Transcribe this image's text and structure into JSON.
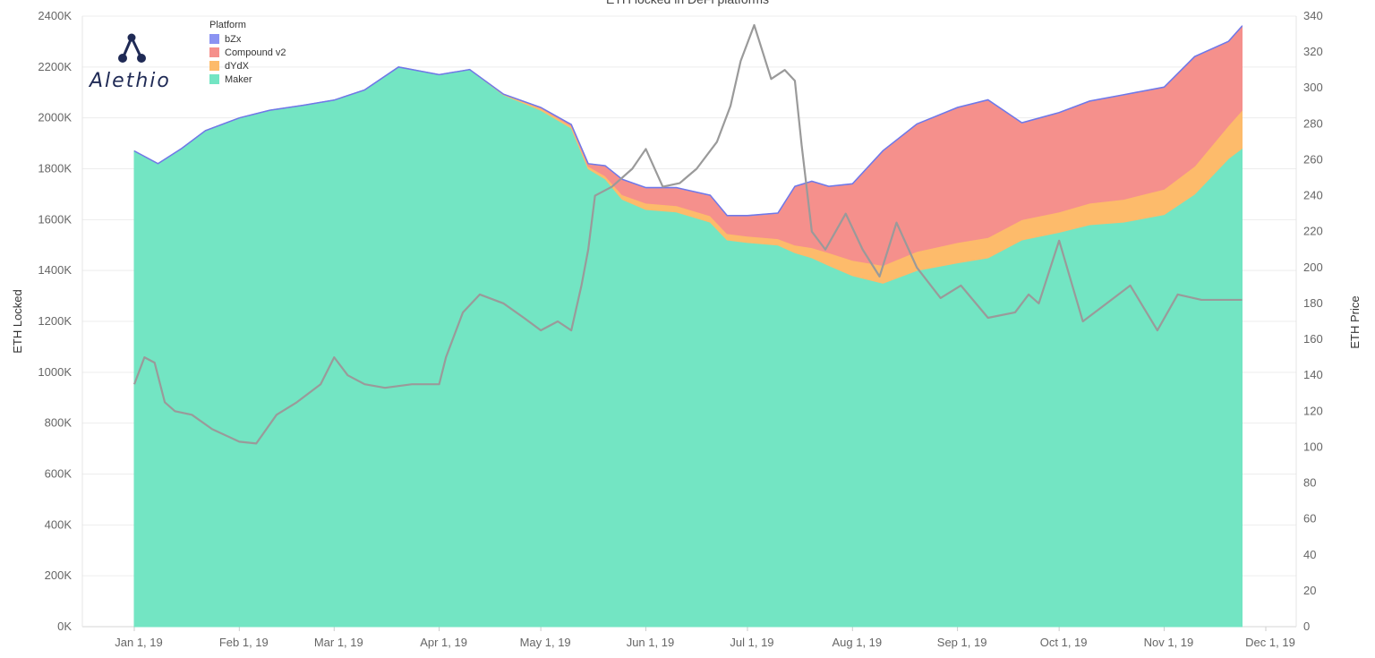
{
  "logo": {
    "wordmark": "Alethio"
  },
  "legend": {
    "title": "Platform",
    "items": [
      {
        "label": "bZx",
        "color": "#8b93f2"
      },
      {
        "label": "Compound v2",
        "color": "#f5908c"
      },
      {
        "label": "dYdX",
        "color": "#fdbb6b"
      },
      {
        "label": "Maker",
        "color": "#73e5c3"
      }
    ]
  },
  "chart_data": {
    "type": "area",
    "title": "ETH locked in DeFi platforms",
    "ylabel": "ETH Locked",
    "y2label": "ETH Price",
    "ylim": [
      0,
      2400000
    ],
    "y2lim": [
      0,
      340
    ],
    "yticks": [
      "0K",
      "200K",
      "400K",
      "600K",
      "800K",
      "1000K",
      "1200K",
      "1400K",
      "1600K",
      "1800K",
      "2000K",
      "2200K",
      "2400K"
    ],
    "y2ticks": [
      "0",
      "20",
      "40",
      "60",
      "80",
      "100",
      "120",
      "140",
      "160",
      "180",
      "200",
      "220",
      "240",
      "260",
      "280",
      "300",
      "320",
      "340"
    ],
    "xticks": [
      "Jan 1, 19",
      "Feb 1, 19",
      "Mar 1, 19",
      "Apr 1, 19",
      "May 1, 19",
      "Jun 1, 19",
      "Jul 1, 19",
      "Aug 1, 19",
      "Sep 1, 19",
      "Oct 1, 19",
      "Nov 1, 19",
      "Dec 1, 19"
    ],
    "x_dates": [
      "2019-01-01",
      "2019-01-08",
      "2019-01-15",
      "2019-01-22",
      "2019-02-01",
      "2019-02-10",
      "2019-02-20",
      "2019-03-01",
      "2019-03-10",
      "2019-03-20",
      "2019-04-01",
      "2019-04-10",
      "2019-04-20",
      "2019-05-01",
      "2019-05-10",
      "2019-05-15",
      "2019-05-20",
      "2019-05-25",
      "2019-06-01",
      "2019-06-10",
      "2019-06-20",
      "2019-06-25",
      "2019-07-01",
      "2019-07-10",
      "2019-07-15",
      "2019-07-20",
      "2019-07-25",
      "2019-08-01",
      "2019-08-10",
      "2019-08-20",
      "2019-09-01",
      "2019-09-10",
      "2019-09-20",
      "2019-10-01",
      "2019-10-10",
      "2019-10-20",
      "2019-11-01",
      "2019-11-10",
      "2019-11-20",
      "2019-11-24"
    ],
    "series": [
      {
        "name": "Maker",
        "color": "#73e5c3",
        "values": [
          1870000,
          1820000,
          1880000,
          1950000,
          2000000,
          2030000,
          2050000,
          2070000,
          2110000,
          2200000,
          2170000,
          2190000,
          2090000,
          2030000,
          1960000,
          1800000,
          1760000,
          1680000,
          1640000,
          1630000,
          1590000,
          1520000,
          1510000,
          1500000,
          1470000,
          1450000,
          1420000,
          1380000,
          1350000,
          1400000,
          1430000,
          1450000,
          1520000,
          1550000,
          1580000,
          1590000,
          1620000,
          1700000,
          1840000,
          1880000
        ]
      },
      {
        "name": "dYdX",
        "color": "#fdbb6b",
        "values": [
          0,
          0,
          0,
          0,
          0,
          0,
          0,
          0,
          0,
          0,
          0,
          0,
          3000,
          8000,
          8000,
          10000,
          12000,
          18000,
          25000,
          25000,
          25000,
          25000,
          25000,
          25000,
          30000,
          40000,
          50000,
          60000,
          70000,
          75000,
          80000,
          80000,
          80000,
          80000,
          85000,
          90000,
          100000,
          110000,
          130000,
          150000
        ]
      },
      {
        "name": "Compound v2",
        "color": "#f5908c",
        "values": [
          0,
          0,
          0,
          0,
          0,
          0,
          0,
          0,
          0,
          0,
          0,
          0,
          0,
          3000,
          6000,
          10000,
          40000,
          60000,
          60000,
          70000,
          80000,
          70000,
          80000,
          100000,
          230000,
          260000,
          260000,
          300000,
          450000,
          500000,
          530000,
          540000,
          380000,
          390000,
          400000,
          410000,
          400000,
          430000,
          330000,
          330000
        ]
      },
      {
        "name": "bZx",
        "color": "#8b93f2",
        "values": [
          0,
          0,
          0,
          0,
          0,
          0,
          0,
          0,
          0,
          0,
          0,
          0,
          0,
          0,
          0,
          0,
          0,
          1000,
          1000,
          1000,
          1000,
          1000,
          1000,
          1000,
          1000,
          1000,
          1000,
          1000,
          1000,
          1000,
          1000,
          1000,
          1000,
          1000,
          1000,
          1000,
          1000,
          1000,
          1000,
          1000
        ]
      }
    ],
    "price_series": {
      "name": "ETH Price",
      "color": "#9a9a9a",
      "x_dates": [
        "2019-01-01",
        "2019-01-04",
        "2019-01-07",
        "2019-01-10",
        "2019-01-13",
        "2019-01-18",
        "2019-01-24",
        "2019-02-01",
        "2019-02-06",
        "2019-02-12",
        "2019-02-18",
        "2019-02-25",
        "2019-03-01",
        "2019-03-05",
        "2019-03-10",
        "2019-03-16",
        "2019-03-24",
        "2019-04-01",
        "2019-04-03",
        "2019-04-08",
        "2019-04-13",
        "2019-04-20",
        "2019-04-26",
        "2019-05-01",
        "2019-05-06",
        "2019-05-10",
        "2019-05-13",
        "2019-05-15",
        "2019-05-17",
        "2019-05-22",
        "2019-05-28",
        "2019-06-01",
        "2019-06-06",
        "2019-06-11",
        "2019-06-16",
        "2019-06-22",
        "2019-06-26",
        "2019-06-29",
        "2019-07-03",
        "2019-07-08",
        "2019-07-12",
        "2019-07-15",
        "2019-07-17",
        "2019-07-20",
        "2019-07-24",
        "2019-07-30",
        "2019-08-04",
        "2019-08-09",
        "2019-08-14",
        "2019-08-20",
        "2019-08-27",
        "2019-09-02",
        "2019-09-10",
        "2019-09-18",
        "2019-09-22",
        "2019-09-25",
        "2019-10-01",
        "2019-10-08",
        "2019-10-15",
        "2019-10-22",
        "2019-10-30",
        "2019-11-05",
        "2019-11-12",
        "2019-11-18",
        "2019-11-24"
      ],
      "values": [
        135,
        150,
        147,
        125,
        120,
        118,
        110,
        103,
        102,
        118,
        125,
        135,
        150,
        140,
        135,
        133,
        135,
        135,
        150,
        175,
        185,
        180,
        172,
        165,
        170,
        165,
        190,
        210,
        240,
        245,
        255,
        266,
        245,
        247,
        255,
        270,
        290,
        315,
        335,
        305,
        310,
        304,
        268,
        220,
        210,
        230,
        210,
        195,
        225,
        200,
        183,
        190,
        172,
        175,
        185,
        180,
        215,
        170,
        180,
        190,
        165,
        185,
        182,
        182,
        182
      ]
    }
  }
}
